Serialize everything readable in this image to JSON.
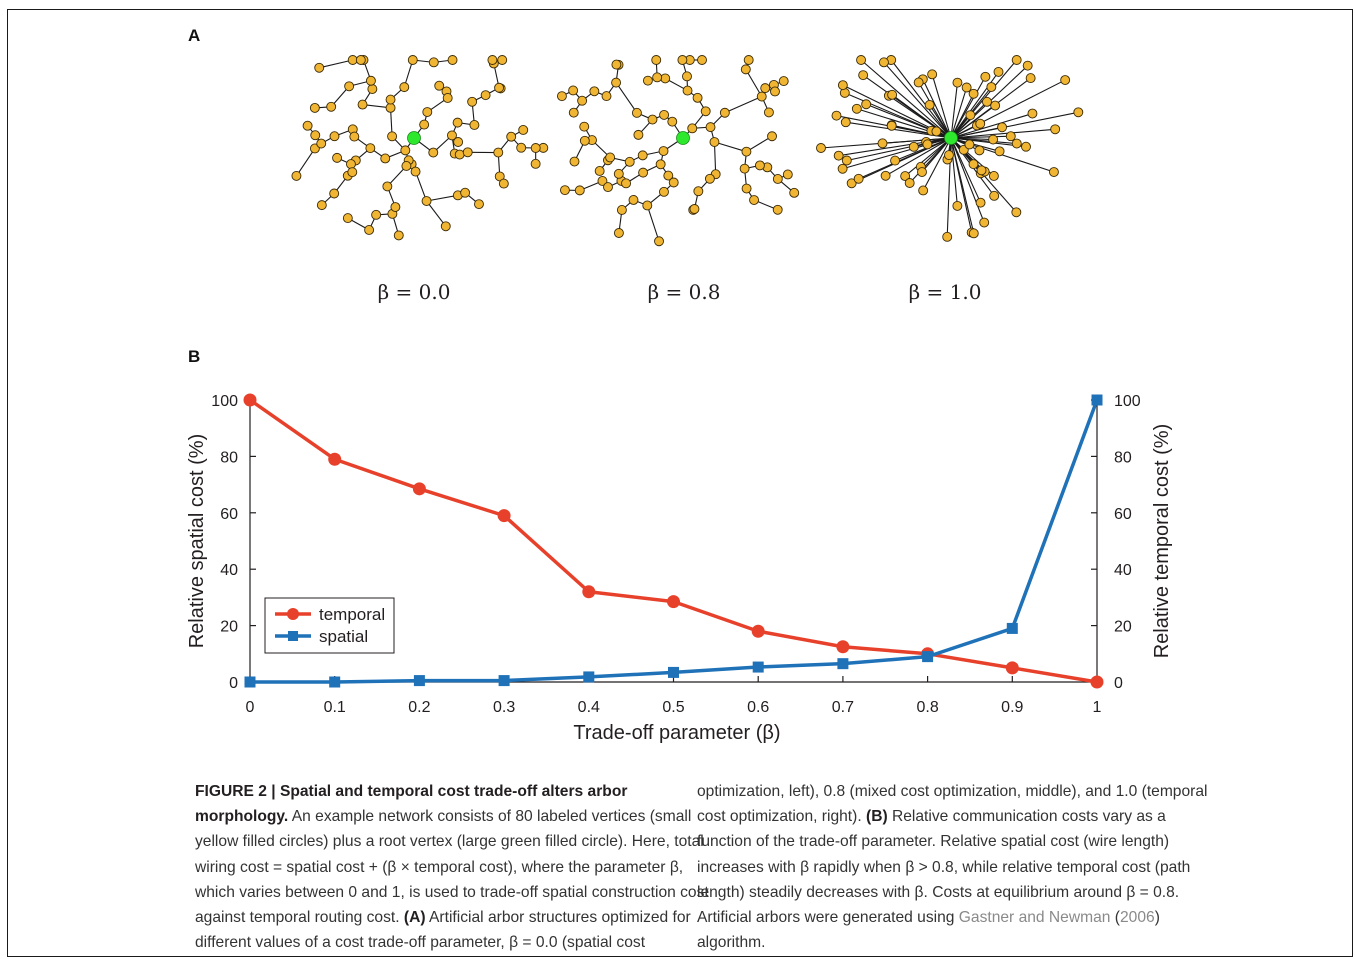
{
  "panel_a": {
    "letter": "A",
    "trees": [
      {
        "label": "β = 0.0"
      },
      {
        "label": "β = 0.8"
      },
      {
        "label": "β = 1.0"
      }
    ],
    "node_color": "#f0b533",
    "root_color": "#2ee82e"
  },
  "panel_b": {
    "letter": "B"
  },
  "chart_data": {
    "type": "line",
    "x": [
      0,
      0.1,
      0.2,
      0.3,
      0.4,
      0.5,
      0.6,
      0.7,
      0.8,
      0.9,
      1
    ],
    "x_tick_labels": [
      "0",
      "0.1",
      "0.2",
      "0.3",
      "0.4",
      "0.5",
      "0.6",
      "0.7",
      "0.8",
      "0.9",
      "1"
    ],
    "series": [
      {
        "name": "temporal",
        "color": "#e8412b",
        "marker": "circle",
        "axis": "right",
        "values": [
          100,
          79,
          68.5,
          59,
          32,
          28.5,
          18,
          12.5,
          10,
          5,
          0
        ]
      },
      {
        "name": "spatial",
        "color": "#1f72b8",
        "marker": "square",
        "axis": "left",
        "values": [
          0,
          0,
          0.5,
          0.5,
          1.8,
          3.4,
          5.3,
          6.5,
          9,
          19,
          100
        ]
      }
    ],
    "xlabel": "Trade-off parameter (β)",
    "ylabel_left": "Relative spatial cost (%)",
    "ylabel_right": "Relative temporal cost (%)",
    "ylim": [
      0,
      100
    ],
    "y_ticks": [
      "0",
      "20",
      "40",
      "60",
      "80",
      "100"
    ],
    "xlim": [
      0,
      1
    ],
    "grid": false,
    "legend_position": "bottom-left"
  },
  "caption": {
    "title": "FIGURE 2 | Spatial and temporal cost trade-off alters arbor morphology.",
    "left_lines": [
      {
        "bold": "morphology.",
        "text": " An example network consists of 80 labeled vertices (small"
      },
      {
        "text": "yellow filled circles) plus a root vertex (large green filled circle). Here, total"
      },
      {
        "text": "wiring cost = spatial cost + (β × temporal cost), where the parameter β,"
      },
      {
        "text": "which varies between 0 and 1, is used to trade-off spatial construction cost"
      },
      {
        "text": "against temporal routing cost. ",
        "bold": "(A)",
        "text2": " Artificial arbor structures optimized for"
      },
      {
        "text": "different values of a cost trade-off parameter, β = 0.0 (spatial cost"
      }
    ],
    "right_lines": [
      {
        "text": "optimization, left), 0.8 (mixed cost optimization, middle), and 1.0 (temporal"
      },
      {
        "text": "cost optimization, right). ",
        "bold": "(B)",
        "text2": " Relative communication costs vary as a"
      },
      {
        "text": "function of the trade-off parameter. Relative spatial cost (wire length)"
      },
      {
        "text": "increases with β rapidly when β > 0.8, while relative temporal cost (path"
      },
      {
        "text": "length) steadily decreases with β. Costs at equilibrium around β = 0.8."
      },
      {
        "text": "Artificial arbors were generated using ",
        "ref": "Gastner and Newman",
        "text2": " (",
        "ref2": "2006",
        "text3": ")"
      },
      {
        "text": "algorithm."
      }
    ],
    "title_line1": "FIGURE 2 | Spatial and temporal cost trade-off alters arbor"
  }
}
